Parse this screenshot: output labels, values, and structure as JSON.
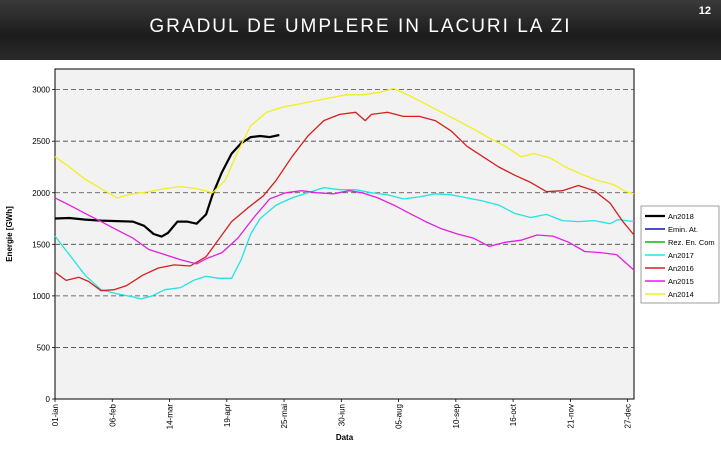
{
  "slide": {
    "title": "GRADUL DE UMPLERE IN LACURI LA ZI",
    "number": "12"
  },
  "chart_data": {
    "type": "line",
    "xlabel": "Data",
    "ylabel": "Energie [GWh]",
    "ylim": [
      0,
      3200
    ],
    "yticks": [
      0,
      500,
      1000,
      1500,
      2000,
      2500,
      3000
    ],
    "xlim": [
      1,
      365
    ],
    "xticks": [
      {
        "day": 1,
        "label": "01-ian"
      },
      {
        "day": 37,
        "label": "06-feb"
      },
      {
        "day": 73,
        "label": "14-mar"
      },
      {
        "day": 109,
        "label": "19-apr"
      },
      {
        "day": 145,
        "label": "25-mai"
      },
      {
        "day": 181,
        "label": "30-iun"
      },
      {
        "day": 217,
        "label": "05-aug"
      },
      {
        "day": 253,
        "label": "10-sep"
      },
      {
        "day": 289,
        "label": "16-oct"
      },
      {
        "day": 325,
        "label": "21-nov"
      },
      {
        "day": 361,
        "label": "27-dec"
      }
    ],
    "grid": "horizontal-dashed",
    "legend_position": "right",
    "series": [
      {
        "name": "An2018",
        "color": "#000000",
        "width": 2.2,
        "points": [
          [
            1,
            1750
          ],
          [
            10,
            1755
          ],
          [
            20,
            1740
          ],
          [
            30,
            1730
          ],
          [
            40,
            1725
          ],
          [
            50,
            1720
          ],
          [
            57,
            1680
          ],
          [
            63,
            1600
          ],
          [
            68,
            1575
          ],
          [
            72,
            1610
          ],
          [
            78,
            1720
          ],
          [
            84,
            1720
          ],
          [
            90,
            1700
          ],
          [
            96,
            1790
          ],
          [
            100,
            1980
          ],
          [
            106,
            2200
          ],
          [
            112,
            2380
          ],
          [
            118,
            2480
          ],
          [
            124,
            2540
          ],
          [
            130,
            2550
          ],
          [
            136,
            2540
          ],
          [
            142,
            2560
          ]
        ]
      },
      {
        "name": "Emin. At.",
        "color": "#1010c0",
        "width": 1,
        "points": []
      },
      {
        "name": "Rez. En. Com",
        "color": "#00c000",
        "width": 1,
        "points": []
      },
      {
        "name": "An2017",
        "color": "#22e4e4",
        "width": 1.3,
        "points": [
          [
            1,
            1580
          ],
          [
            10,
            1400
          ],
          [
            20,
            1200
          ],
          [
            30,
            1060
          ],
          [
            40,
            1020
          ],
          [
            50,
            990
          ],
          [
            55,
            970
          ],
          [
            62,
            1000
          ],
          [
            70,
            1060
          ],
          [
            80,
            1080
          ],
          [
            88,
            1150
          ],
          [
            96,
            1190
          ],
          [
            104,
            1170
          ],
          [
            112,
            1170
          ],
          [
            118,
            1350
          ],
          [
            124,
            1600
          ],
          [
            130,
            1750
          ],
          [
            140,
            1880
          ],
          [
            150,
            1950
          ],
          [
            160,
            2000
          ],
          [
            170,
            2050
          ],
          [
            180,
            2030
          ],
          [
            190,
            2030
          ],
          [
            200,
            2000
          ],
          [
            210,
            1980
          ],
          [
            220,
            1940
          ],
          [
            230,
            1960
          ],
          [
            240,
            1990
          ],
          [
            250,
            1980
          ],
          [
            260,
            1950
          ],
          [
            270,
            1920
          ],
          [
            280,
            1880
          ],
          [
            290,
            1800
          ],
          [
            300,
            1760
          ],
          [
            310,
            1790
          ],
          [
            320,
            1730
          ],
          [
            330,
            1720
          ],
          [
            340,
            1730
          ],
          [
            350,
            1700
          ],
          [
            355,
            1740
          ],
          [
            365,
            1720
          ]
        ]
      },
      {
        "name": "An2016",
        "color": "#d42020",
        "width": 1.3,
        "points": [
          [
            1,
            1230
          ],
          [
            8,
            1150
          ],
          [
            16,
            1180
          ],
          [
            22,
            1140
          ],
          [
            30,
            1050
          ],
          [
            38,
            1060
          ],
          [
            46,
            1100
          ],
          [
            56,
            1200
          ],
          [
            66,
            1270
          ],
          [
            76,
            1300
          ],
          [
            86,
            1290
          ],
          [
            96,
            1380
          ],
          [
            104,
            1550
          ],
          [
            112,
            1720
          ],
          [
            122,
            1850
          ],
          [
            132,
            1970
          ],
          [
            140,
            2120
          ],
          [
            150,
            2350
          ],
          [
            160,
            2550
          ],
          [
            170,
            2700
          ],
          [
            180,
            2760
          ],
          [
            190,
            2780
          ],
          [
            196,
            2700
          ],
          [
            200,
            2760
          ],
          [
            210,
            2780
          ],
          [
            220,
            2740
          ],
          [
            230,
            2740
          ],
          [
            240,
            2700
          ],
          [
            250,
            2600
          ],
          [
            260,
            2450
          ],
          [
            270,
            2350
          ],
          [
            280,
            2250
          ],
          [
            290,
            2170
          ],
          [
            300,
            2100
          ],
          [
            310,
            2010
          ],
          [
            320,
            2020
          ],
          [
            330,
            2070
          ],
          [
            340,
            2020
          ],
          [
            350,
            1900
          ],
          [
            358,
            1720
          ],
          [
            365,
            1590
          ]
        ]
      },
      {
        "name": "An2015",
        "color": "#e020e0",
        "width": 1.3,
        "points": [
          [
            1,
            1950
          ],
          [
            10,
            1880
          ],
          [
            20,
            1800
          ],
          [
            30,
            1720
          ],
          [
            40,
            1640
          ],
          [
            50,
            1560
          ],
          [
            60,
            1450
          ],
          [
            70,
            1400
          ],
          [
            80,
            1350
          ],
          [
            90,
            1310
          ],
          [
            96,
            1360
          ],
          [
            106,
            1420
          ],
          [
            116,
            1560
          ],
          [
            126,
            1760
          ],
          [
            136,
            1940
          ],
          [
            146,
            2000
          ],
          [
            156,
            2020
          ],
          [
            166,
            2000
          ],
          [
            176,
            1990
          ],
          [
            186,
            2020
          ],
          [
            194,
            2000
          ],
          [
            204,
            1950
          ],
          [
            214,
            1880
          ],
          [
            224,
            1800
          ],
          [
            234,
            1720
          ],
          [
            244,
            1650
          ],
          [
            254,
            1600
          ],
          [
            264,
            1560
          ],
          [
            274,
            1480
          ],
          [
            284,
            1520
          ],
          [
            294,
            1540
          ],
          [
            304,
            1590
          ],
          [
            314,
            1580
          ],
          [
            324,
            1520
          ],
          [
            334,
            1430
          ],
          [
            344,
            1420
          ],
          [
            354,
            1400
          ],
          [
            365,
            1250
          ]
        ]
      },
      {
        "name": "An2014",
        "color": "#f0f020",
        "width": 1.3,
        "points": [
          [
            1,
            2350
          ],
          [
            10,
            2250
          ],
          [
            20,
            2130
          ],
          [
            30,
            2040
          ],
          [
            40,
            1950
          ],
          [
            50,
            1990
          ],
          [
            60,
            2010
          ],
          [
            70,
            2040
          ],
          [
            80,
            2060
          ],
          [
            90,
            2040
          ],
          [
            100,
            2000
          ],
          [
            108,
            2120
          ],
          [
            116,
            2400
          ],
          [
            124,
            2650
          ],
          [
            134,
            2780
          ],
          [
            144,
            2830
          ],
          [
            154,
            2860
          ],
          [
            164,
            2890
          ],
          [
            174,
            2920
          ],
          [
            184,
            2950
          ],
          [
            194,
            2950
          ],
          [
            204,
            2970
          ],
          [
            214,
            3010
          ],
          [
            224,
            2940
          ],
          [
            234,
            2860
          ],
          [
            244,
            2780
          ],
          [
            254,
            2700
          ],
          [
            264,
            2620
          ],
          [
            274,
            2530
          ],
          [
            284,
            2450
          ],
          [
            294,
            2350
          ],
          [
            302,
            2380
          ],
          [
            312,
            2340
          ],
          [
            322,
            2250
          ],
          [
            332,
            2180
          ],
          [
            342,
            2120
          ],
          [
            352,
            2080
          ],
          [
            360,
            2010
          ],
          [
            365,
            1990
          ]
        ]
      }
    ]
  }
}
